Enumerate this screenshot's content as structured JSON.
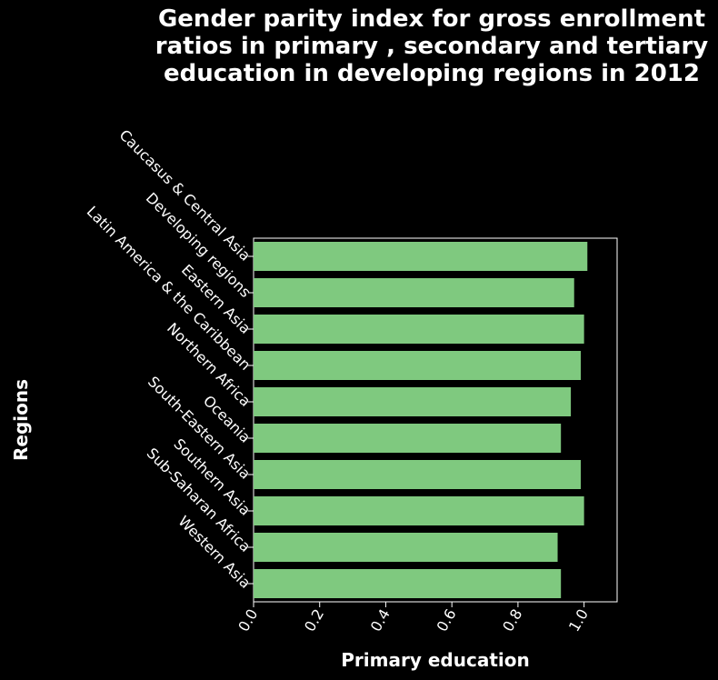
{
  "chart_data": {
    "type": "bar",
    "orientation": "horizontal",
    "title": "Gender parity index for gross enrollment ratios in primary , secondary and tertiary education in developing regions in 2012",
    "xlabel": "Primary education",
    "ylabel": "Regions",
    "categories": [
      "Caucasus & Central Asia",
      "Developing regions",
      "Eastern Asia",
      "Latin America & the Caribbean",
      "Northern Africa",
      "Oceania",
      "South-Eastern Asia",
      "Southern Asia",
      "Sub-Saharan Africa",
      "Western Asia"
    ],
    "values": [
      1.01,
      0.97,
      1.0,
      0.99,
      0.96,
      0.93,
      0.99,
      1.0,
      0.92,
      0.93
    ],
    "xlim": [
      0,
      1.1
    ],
    "xticks": [
      "0.0",
      "0.2",
      "0.4",
      "0.6",
      "0.8",
      "1.0"
    ],
    "grid": false,
    "colors": {
      "bar": "#7fc97f",
      "background": "#000000",
      "text": "#ffffff"
    }
  }
}
